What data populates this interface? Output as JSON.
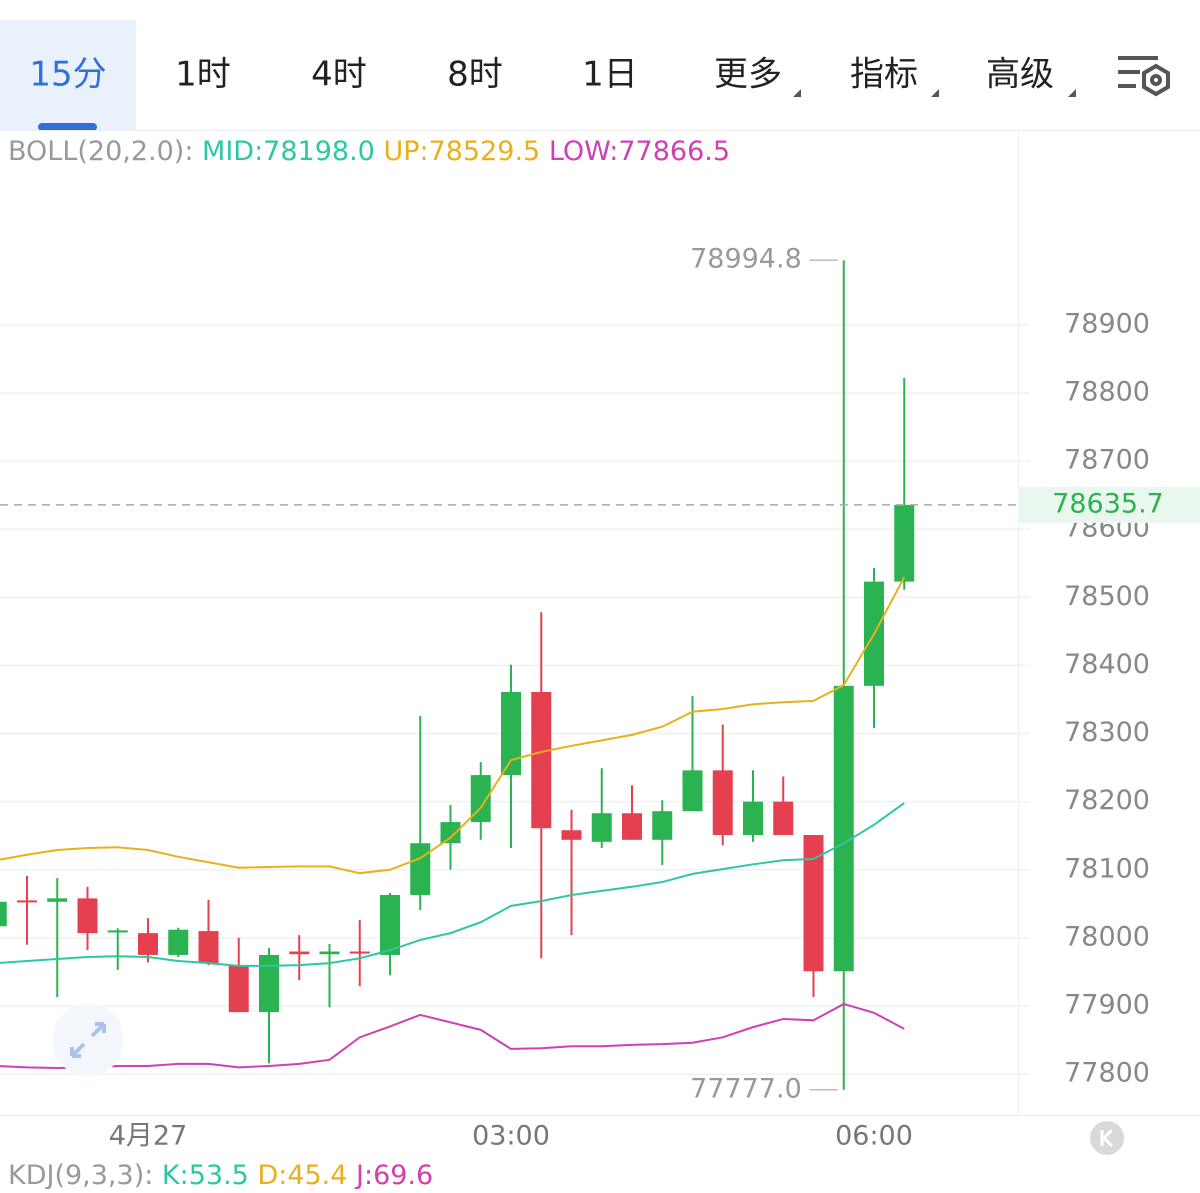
{
  "tabs": [
    "15分",
    "1时",
    "4时",
    "8时",
    "1日",
    "更多",
    "指标",
    "高级"
  ],
  "indicator_legend": {
    "label": "BOLL(20,2.0):",
    "items": [
      "MID:78198.0",
      "UP:78529.5",
      "LOW:77866.5"
    ]
  },
  "sub_legend": {
    "label": "KDJ(9,3,3):",
    "items": [
      "K:53.5",
      "D:45.4",
      "J:69.6"
    ]
  },
  "chart_data": {
    "type": "candlestick",
    "categories": [
      null,
      null,
      null,
      null,
      null,
      "4月27",
      null,
      null,
      null,
      null,
      null,
      null,
      null,
      null,
      null,
      null,
      null,
      "03:00",
      null,
      null,
      null,
      null,
      null,
      null,
      null,
      null,
      null,
      null,
      null,
      "06:00",
      null
    ],
    "open": [
      78017,
      78055,
      78053,
      78058,
      78008,
      78007,
      77975,
      78010,
      77960,
      77891,
      77980,
      77976,
      77980,
      77975,
      78063,
      78139,
      78170,
      78239,
      78361,
      78158,
      78141,
      78183,
      78144,
      78186,
      78246,
      78151,
      78200,
      78151,
      77951,
      78370,
      78523
    ],
    "high": [
      78070,
      78091,
      78088,
      78075,
      78014,
      78029,
      78015,
      78056,
      78000,
      77985,
      78004,
      77991,
      78026,
      78066,
      78326,
      78195,
      78258,
      78401,
      78478,
      78188,
      78249,
      78224,
      78202,
      78355,
      78313,
      78246,
      78237,
      78151,
      78994.8,
      78543,
      78822
    ],
    "low": [
      78011,
      77990,
      77913,
      77982,
      77953,
      77964,
      77972,
      77960,
      77891,
      77816,
      77938,
      77898,
      77929,
      77945,
      78041,
      78100,
      78144,
      78132,
      77970,
      78004,
      78132,
      78144,
      78107,
      78186,
      78136,
      78141,
      78151,
      77913,
      77777.0,
      78308,
      78511
    ],
    "close": [
      78053,
      78053,
      78058,
      78007,
      78011,
      77975,
      78012,
      77963,
      77891,
      77975,
      77976,
      77980,
      77977,
      78063,
      78139,
      78170,
      78239,
      78361,
      78161,
      78144,
      78183,
      78144,
      78186,
      78246,
      78151,
      78200,
      78151,
      77951,
      78370,
      78523,
      78635.7
    ],
    "up_color": "#2bb351",
    "down_color": "#e5404f",
    "series": [
      {
        "color": "#2ec7a3",
        "values": [
          77963,
          77966,
          77969,
          77972,
          77973,
          77972,
          77966,
          77963,
          77959,
          77959,
          77960,
          77963,
          77970,
          77982,
          77997,
          78007,
          78023,
          78047,
          78054,
          78063,
          78069,
          78075,
          78082,
          78094,
          78101,
          78108,
          78114,
          78116,
          78139,
          78166,
          78198.0
        ]
      },
      {
        "color": "#e8b01c",
        "values": [
          78114,
          78122,
          78129,
          78132,
          78133,
          78129,
          78119,
          78111,
          78103,
          78104,
          78105,
          78105,
          78095,
          78100,
          78117,
          78147,
          78191,
          78261,
          78273,
          78282,
          78290,
          78298,
          78310,
          78332,
          78336,
          78343,
          78346,
          78348,
          78371,
          78446,
          78529.5
        ]
      },
      {
        "color": "#d040b0",
        "values": [
          77812,
          77810,
          77809,
          77810,
          77812,
          77812,
          77815,
          77815,
          77810,
          77812,
          77815,
          77821,
          77854,
          77870,
          77887,
          77876,
          77865,
          77837,
          77838,
          77841,
          77841,
          77843,
          77844,
          77846,
          77854,
          77869,
          77881,
          77879,
          77903,
          77890,
          77866.5
        ]
      }
    ],
    "ylim": [
      77740,
      79186
    ],
    "yticks": [
      77800,
      77900,
      78000,
      78100,
      78200,
      78300,
      78400,
      78500,
      78600,
      78700,
      78800,
      78900
    ],
    "grid": true,
    "current_price": 78635.7,
    "annotations": [
      {
        "text": "78994.8"
      },
      {
        "text": "77777.0"
      }
    ]
  }
}
